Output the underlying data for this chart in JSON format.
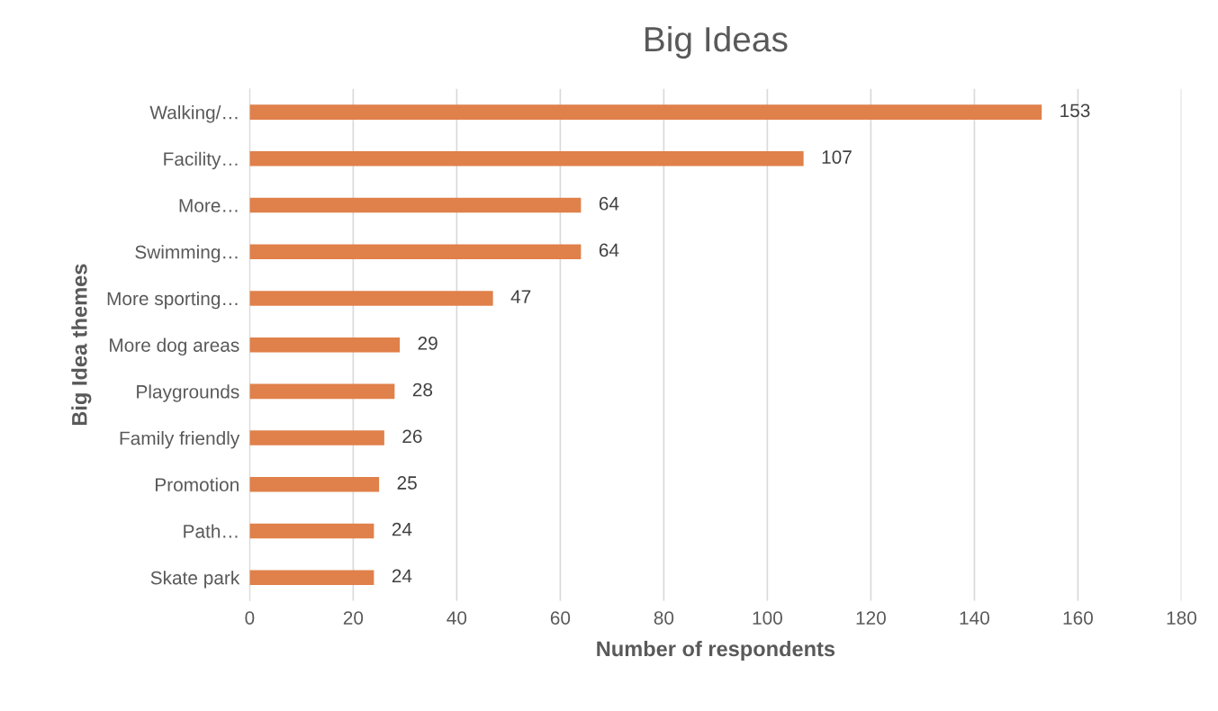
{
  "chart_data": {
    "type": "bar",
    "orientation": "horizontal",
    "title": "Big Ideas",
    "xlabel": "Number of respondents",
    "ylabel": "Big Idea themes",
    "categories": [
      "Walking/…",
      "Facility…",
      "More…",
      "Swimming…",
      "More sporting…",
      "More dog areas",
      "Playgrounds",
      "Family friendly",
      "Promotion",
      "Path…",
      "Skate park"
    ],
    "values": [
      153,
      107,
      64,
      64,
      47,
      29,
      28,
      26,
      25,
      24,
      24
    ],
    "color": "#e0804a",
    "xlim": [
      0,
      180
    ],
    "xticks": [
      0,
      20,
      40,
      60,
      80,
      100,
      120,
      140,
      160,
      180
    ],
    "grid": "x",
    "data_labels": true,
    "legend": false
  }
}
